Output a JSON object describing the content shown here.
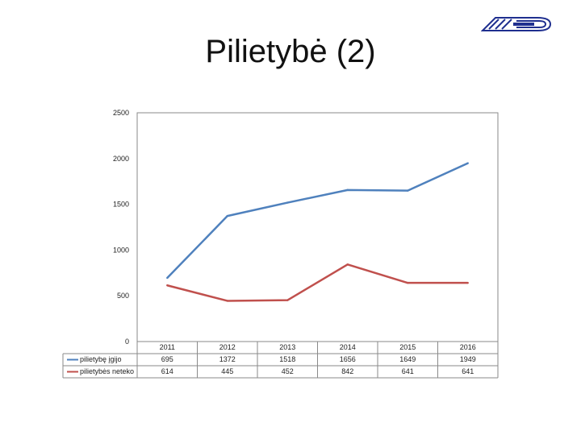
{
  "page": {
    "title": "Pilietybė (2)"
  },
  "chart_data": {
    "type": "line",
    "categories": [
      "2011",
      "2012",
      "2013",
      "2014",
      "2015",
      "2016"
    ],
    "series": [
      {
        "name": "pilietybę įgijo",
        "values": [
          695,
          1372,
          1518,
          1656,
          1649,
          1949
        ],
        "color": "#4f81bd"
      },
      {
        "name": "pilietybės neteko",
        "values": [
          614,
          445,
          452,
          842,
          641,
          641
        ],
        "color": "#c0504d"
      }
    ],
    "yticks": [
      0,
      500,
      1000,
      1500,
      2000,
      2500
    ],
    "ylim": [
      0,
      2500
    ],
    "legend": "bottom data table",
    "grid": false
  }
}
